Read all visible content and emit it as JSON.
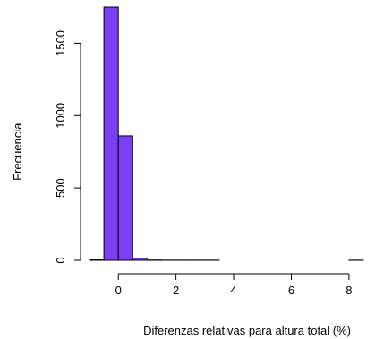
{
  "chart_data": {
    "type": "bar",
    "xlabel": "Diferenzas relativas para altura total (%)",
    "ylabel": "Frecuencia",
    "bin_edges": [
      -1,
      -0.5,
      0,
      0.5,
      1,
      1.5,
      2,
      2.5,
      3,
      3.5,
      4,
      4.5,
      5,
      5.5,
      6,
      6.5,
      7,
      7.5,
      8,
      8.5
    ],
    "values": [
      3,
      1750,
      860,
      15,
      2,
      1,
      1,
      1,
      1,
      0,
      0,
      0,
      0,
      0,
      0,
      0,
      0,
      0,
      1
    ],
    "x_ticks": [
      0,
      2,
      4,
      6,
      8
    ],
    "y_ticks": [
      0,
      500,
      1000,
      1500
    ],
    "xlim": [
      -1,
      8.5
    ],
    "ylim": [
      0,
      1750
    ],
    "bar_color": "#7B3FF5",
    "grid": false
  }
}
